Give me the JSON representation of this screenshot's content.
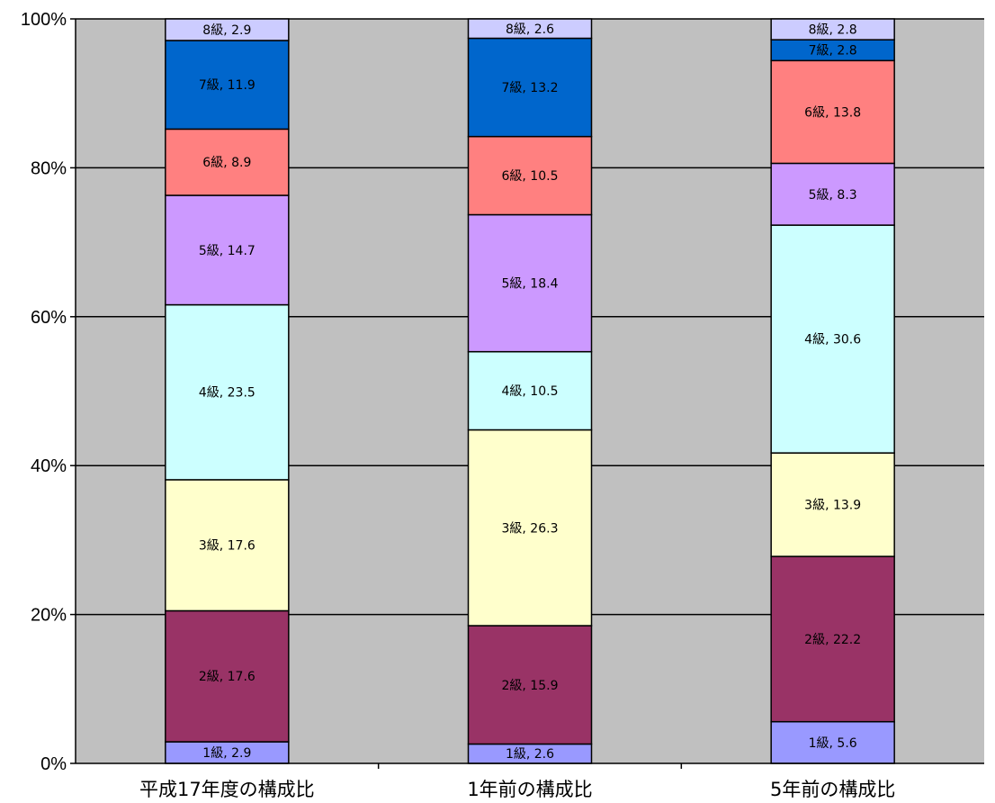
{
  "chart_data": {
    "type": "bar",
    "stacked": "percent",
    "categories": [
      "平成17年度の構成比",
      "1年前の構成比",
      "5年前の構成比"
    ],
    "ylim": [
      0,
      100
    ],
    "yticks": [
      "0%",
      "20%",
      "40%",
      "60%",
      "80%",
      "100%"
    ],
    "ytick_values": [
      0,
      20,
      40,
      60,
      80,
      100
    ],
    "grid": true,
    "plot_background": "#c0c0c0",
    "series": [
      {
        "name": "1級",
        "color": "#9999ff",
        "values": [
          2.9,
          2.6,
          5.6
        ],
        "labels": [
          "1級, 2.9",
          "1級, 2.6",
          "1級, 5.6"
        ]
      },
      {
        "name": "2級",
        "color": "#993366",
        "values": [
          17.6,
          15.9,
          22.2
        ],
        "labels": [
          "2級, 17.6",
          "2級, 15.9",
          "2級, 22.2"
        ]
      },
      {
        "name": "3級",
        "color": "#ffffcc",
        "values": [
          17.6,
          26.3,
          13.9
        ],
        "labels": [
          "3級, 17.6",
          "3級, 26.3",
          "3級, 13.9"
        ]
      },
      {
        "name": "4級",
        "color": "#ccffff",
        "values": [
          23.5,
          10.5,
          30.6
        ],
        "labels": [
          "4級, 23.5",
          "4級, 10.5",
          "4級, 30.6"
        ]
      },
      {
        "name": "5級",
        "color": "#cc99ff",
        "values": [
          14.7,
          18.4,
          8.3
        ],
        "labels": [
          "5級, 14.7",
          "5級, 18.4",
          "5級, 8.3"
        ]
      },
      {
        "name": "6級",
        "color": "#ff8080",
        "values": [
          8.9,
          10.5,
          13.8
        ],
        "labels": [
          "6級, 8.9",
          "6級, 10.5",
          "6級, 13.8"
        ]
      },
      {
        "name": "7級",
        "color": "#0066cc",
        "values": [
          11.9,
          13.2,
          2.8
        ],
        "labels": [
          "7級, 11.9",
          "7級, 13.2",
          "7級, 2.8"
        ]
      },
      {
        "name": "8級",
        "color": "#ccccff",
        "values": [
          2.9,
          2.6,
          2.8
        ],
        "labels": [
          "8級, 2.9",
          "8級, 2.6",
          "8級, 2.8"
        ]
      }
    ]
  }
}
